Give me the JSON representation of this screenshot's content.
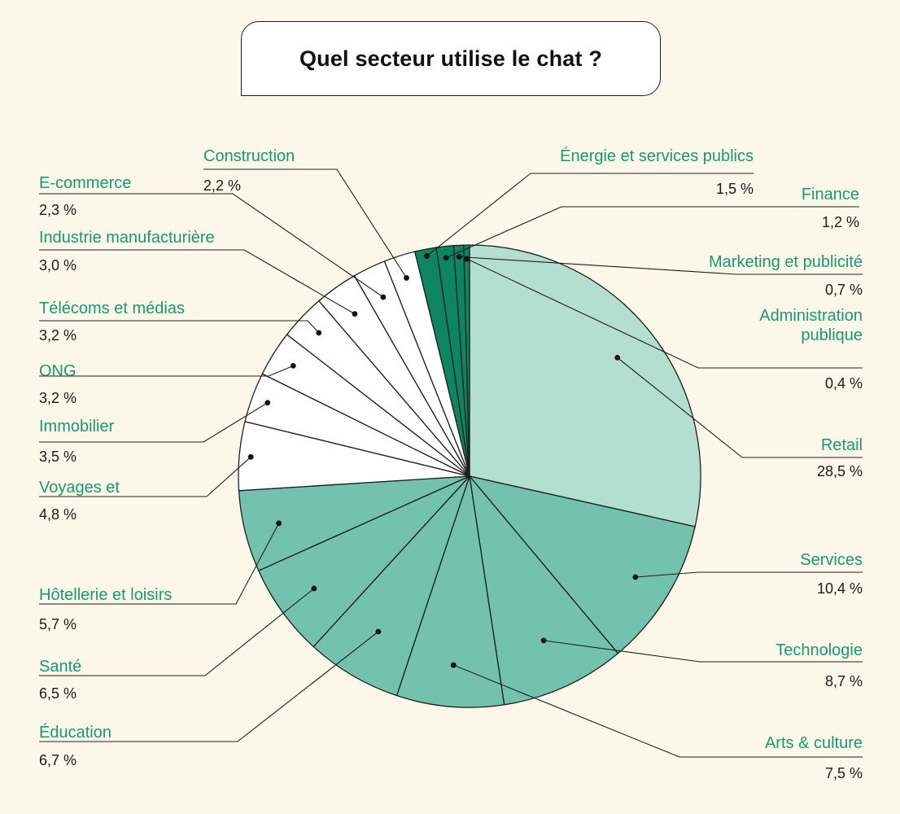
{
  "chart_data": {
    "type": "pie",
    "title": "Quel secteur utilise le chat ?",
    "colors": {
      "label": "#159a6e",
      "value": "#1a1a1a",
      "outline": "#1e1e1e",
      "largest": "#b2dfd0",
      "medium": "#72c2ad",
      "small": "#ffffff",
      "tiny": "#0d8660"
    },
    "slices": [
      {
        "label": "Retail",
        "value": 28.5,
        "value_label": "28,5 %",
        "color": "#b2dfd0"
      },
      {
        "label": "Services",
        "value": 10.4,
        "value_label": "10,4 %",
        "color": "#72c2ad"
      },
      {
        "label": "Technologie",
        "value": 8.7,
        "value_label": "8,7 %",
        "color": "#72c2ad"
      },
      {
        "label": "Arts & culture",
        "value": 7.5,
        "value_label": "7,5 %",
        "color": "#72c2ad"
      },
      {
        "label": "Éducation",
        "value": 6.7,
        "value_label": "6,7 %",
        "color": "#72c2ad"
      },
      {
        "label": "Santé",
        "value": 6.5,
        "value_label": "6,5 %",
        "color": "#72c2ad"
      },
      {
        "label": "Hôtellerie et loisirs",
        "value": 5.7,
        "value_label": "5,7 %",
        "color": "#72c2ad"
      },
      {
        "label": "Voyages et",
        "value": 4.8,
        "value_label": "4,8 %",
        "color": "#ffffff"
      },
      {
        "label": "Immobilier",
        "value": 3.5,
        "value_label": "3,5 %",
        "color": "#ffffff"
      },
      {
        "label": "ONG",
        "value": 3.2,
        "value_label": "3,2 %",
        "color": "#ffffff"
      },
      {
        "label": "Télécoms et médias",
        "value": 3.2,
        "value_label": "3,2 %",
        "color": "#ffffff"
      },
      {
        "label": "Industrie manufacturière",
        "value": 3.0,
        "value_label": "3,0 %",
        "color": "#ffffff"
      },
      {
        "label": "E-commerce",
        "value": 2.3,
        "value_label": "2,3 %",
        "color": "#ffffff"
      },
      {
        "label": "Construction",
        "value": 2.2,
        "value_label": "2,2 %",
        "color": "#ffffff"
      },
      {
        "label": "Énergie et services publics",
        "value": 1.5,
        "value_label": "1,5 %",
        "color": "#0d8660"
      },
      {
        "label": "Finance",
        "value": 1.2,
        "value_label": "1,2 %",
        "color": "#0d8660"
      },
      {
        "label": "Marketing et publicité",
        "value": 0.7,
        "value_label": "0,7 %",
        "color": "#0d8660"
      },
      {
        "label": "Administration publique",
        "value": 0.4,
        "value_label": "0,4 %",
        "color": "#0d8660"
      }
    ]
  }
}
